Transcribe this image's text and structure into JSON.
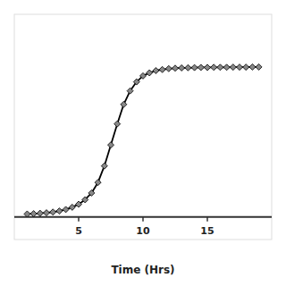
{
  "chart_data": {
    "type": "line",
    "xlabel": "Time (Hrs)",
    "x": [
      1,
      1.5,
      2,
      2.5,
      3,
      3.5,
      4,
      4.5,
      5,
      5.5,
      6,
      6.5,
      7,
      7.5,
      8,
      8.5,
      9,
      9.5,
      10,
      10.5,
      11,
      11.5,
      12,
      12.5,
      13,
      13.5,
      14,
      14.5,
      15,
      15.5,
      16,
      16.5,
      17,
      17.5,
      18,
      18.5,
      19
    ],
    "values": [
      0.02,
      0.022,
      0.025,
      0.028,
      0.033,
      0.04,
      0.05,
      0.065,
      0.085,
      0.115,
      0.16,
      0.23,
      0.34,
      0.48,
      0.62,
      0.75,
      0.84,
      0.9,
      0.94,
      0.96,
      0.975,
      0.982,
      0.988,
      0.991,
      0.993,
      0.994,
      0.995,
      0.996,
      0.996,
      0.997,
      0.997,
      0.997,
      0.998,
      0.998,
      0.998,
      0.999,
      0.999
    ],
    "color": "#000000",
    "marker": "diamond",
    "xlim": [
      0,
      20
    ],
    "ylim": [
      -0.15,
      1.35
    ],
    "xticks": [
      5,
      10,
      15
    ],
    "tick_labels": "x",
    "grid": false
  }
}
